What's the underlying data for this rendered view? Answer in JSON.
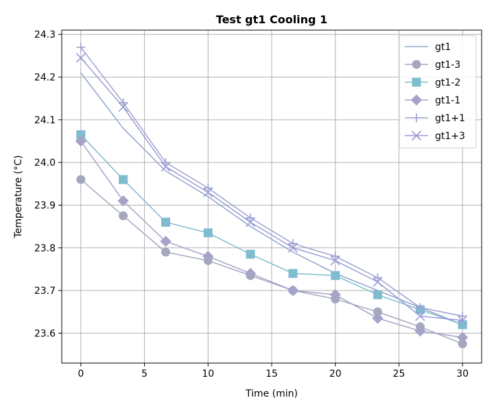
{
  "chart_data": {
    "type": "line",
    "title": "Test gt1 Cooling 1",
    "xlabel": "Time (min)",
    "ylabel": "Temperature (°C)",
    "xlim": [
      -1.5,
      31.5
    ],
    "ylim": [
      23.53,
      24.31
    ],
    "xticks": [
      0,
      5,
      10,
      15,
      20,
      25,
      30
    ],
    "xtick_labels": [
      "0",
      "5",
      "10",
      "15",
      "20",
      "25",
      "30"
    ],
    "yticks": [
      23.6,
      23.7,
      23.8,
      23.9,
      24.0,
      24.1,
      24.2,
      24.3
    ],
    "ytick_labels": [
      "23.6",
      "23.7",
      "23.8",
      "23.9",
      "24.0",
      "24.1",
      "24.2",
      "24.3"
    ],
    "grid": true,
    "legend_position": "top-right",
    "x": [
      0,
      3.33,
      6.67,
      10,
      13.33,
      16.67,
      20,
      23.33,
      26.67,
      30
    ],
    "series": [
      {
        "name": "gt1",
        "color": "#8fa3cc",
        "marker": "none",
        "values": [
          24.21,
          24.08,
          23.98,
          23.92,
          23.85,
          23.79,
          23.74,
          23.7,
          23.66,
          23.62
        ]
      },
      {
        "name": "gt1-3",
        "color": "#a3a8bd",
        "marker": "circle",
        "values": [
          23.96,
          23.875,
          23.79,
          23.77,
          23.735,
          23.7,
          23.68,
          23.65,
          23.615,
          23.575
        ]
      },
      {
        "name": "gt1-2",
        "color": "#7fbccf",
        "marker": "square",
        "values": [
          24.065,
          23.96,
          23.86,
          23.835,
          23.785,
          23.74,
          23.735,
          23.69,
          23.655,
          23.62
        ]
      },
      {
        "name": "gt1-1",
        "color": "#a5a3c7",
        "marker": "diamond",
        "values": [
          24.05,
          23.91,
          23.815,
          23.78,
          23.74,
          23.7,
          23.69,
          23.635,
          23.605,
          23.59
        ]
      },
      {
        "name": "gt1+1",
        "color": "#9da2d1",
        "marker": "plus",
        "values": [
          24.27,
          24.14,
          24.0,
          23.94,
          23.87,
          23.81,
          23.78,
          23.73,
          23.66,
          23.64
        ]
      },
      {
        "name": "gt1+3",
        "color": "#9a9ad6",
        "marker": "x",
        "values": [
          24.245,
          24.13,
          23.99,
          23.93,
          23.86,
          23.8,
          23.77,
          23.72,
          23.64,
          23.63
        ]
      }
    ]
  }
}
